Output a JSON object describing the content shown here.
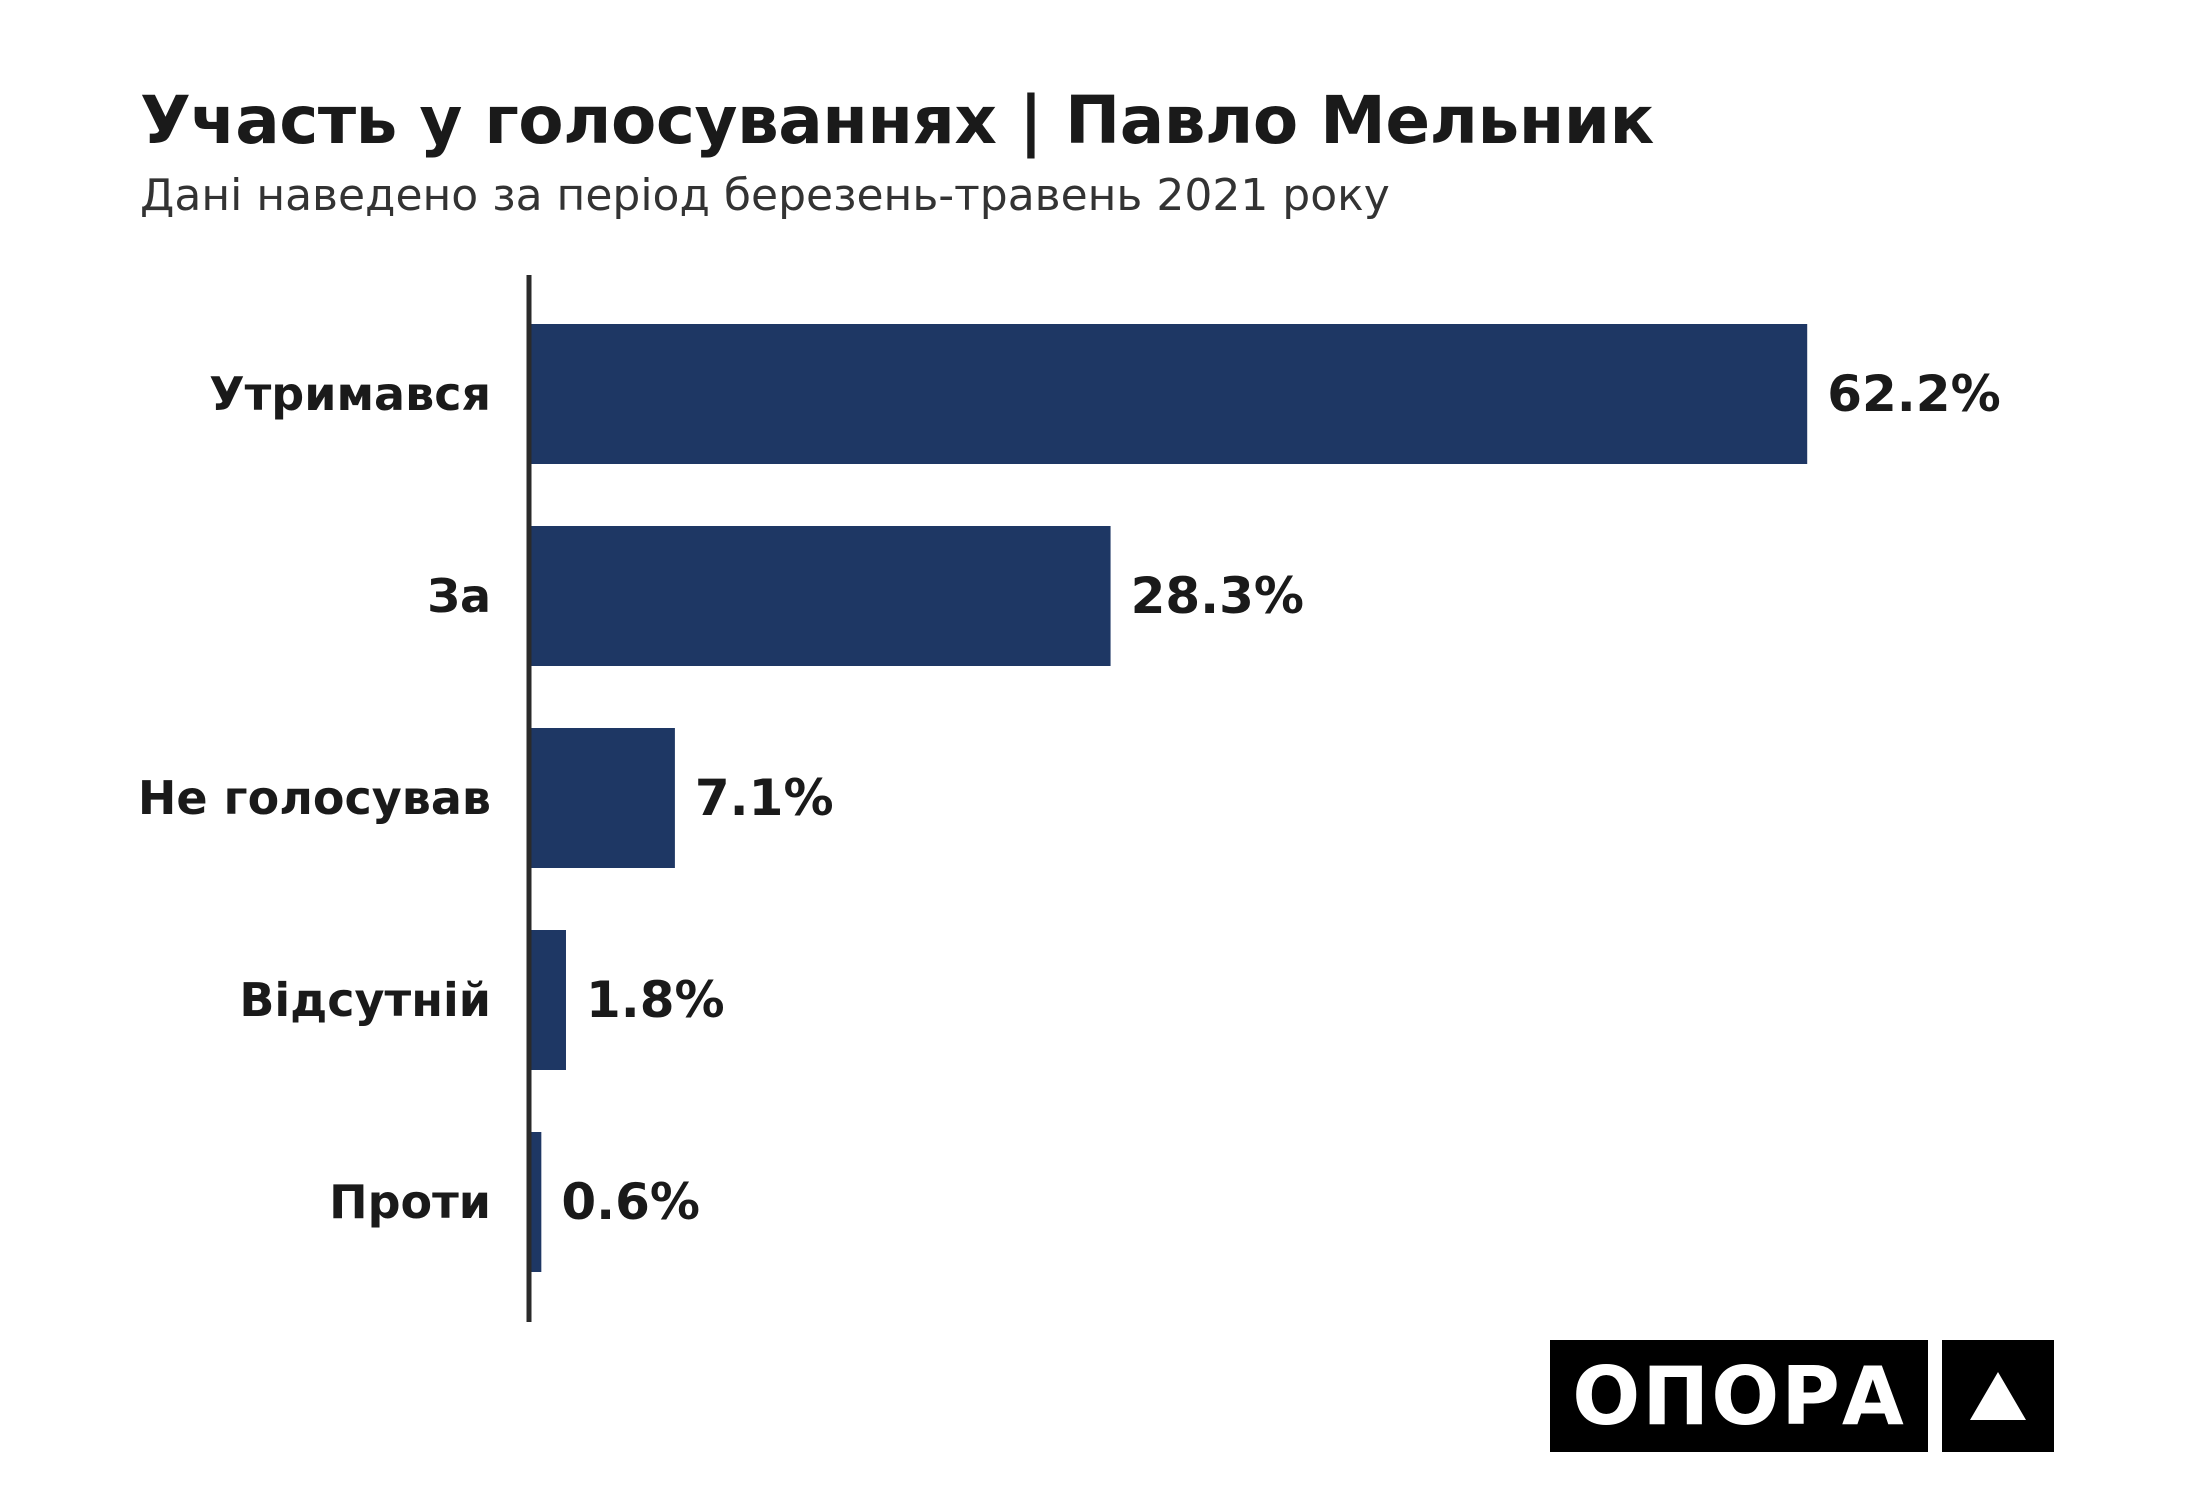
{
  "header": {
    "title": "Участь у голосуваннях | Павло Мельник",
    "subtitle": "Дані наведено за період березень-травень 2021 року"
  },
  "chart_data": {
    "type": "bar",
    "orientation": "horizontal",
    "categories": [
      "Утримався",
      "За",
      "Не голосував",
      "Відсутній",
      "Проти"
    ],
    "values": [
      62.2,
      28.3,
      7.1,
      1.8,
      0.6
    ],
    "value_labels": [
      "62.2%",
      "28.3%",
      "7.1%",
      "1.8%",
      "0.6%"
    ],
    "unit": "%",
    "xlim": [
      0,
      100
    ],
    "grid": false,
    "legend": "none",
    "bar_color": "#1e3764",
    "axis_color": "#2a2a2a"
  },
  "logo": {
    "text": "ОПОРА",
    "icon": "triangle-icon",
    "background": "#000000",
    "foreground": "#ffffff"
  }
}
